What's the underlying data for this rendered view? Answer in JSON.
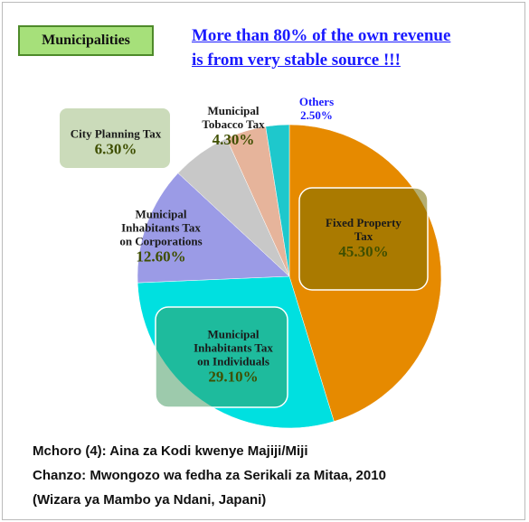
{
  "chart_data": {
    "type": "pie",
    "badge": "Municipalities",
    "title": "More than 80% of the own revenue\nis from very stable source !!!",
    "categories": [
      "Fixed Property\nTax",
      "Municipal\nInhabitants Tax\non Individuals",
      "Municipal\nInhabitants Tax\non Corporations",
      "City Planning Tax",
      "Municipal\nTobacco Tax",
      "Others"
    ],
    "values": [
      45.3,
      29.1,
      12.6,
      6.3,
      4.3,
      2.5
    ],
    "value_labels": [
      "45.30%",
      "29.10%",
      "12.60%",
      "6.30%",
      "4.30%",
      "2.50%"
    ],
    "colors": [
      "#e68a00",
      "#00e0e0",
      "#9b9be6",
      "#c8c8c8",
      "#e6b49b",
      "#1ec8cc"
    ],
    "caption": [
      "Mchoro (4): Aina za Kodi kwenye Majiji/Miji",
      "Chanzo: Mwongozo wa fedha za Serikali za Mitaa, 2010",
      "(Wizara ya Mambo ya Ndani, Japani)"
    ]
  }
}
